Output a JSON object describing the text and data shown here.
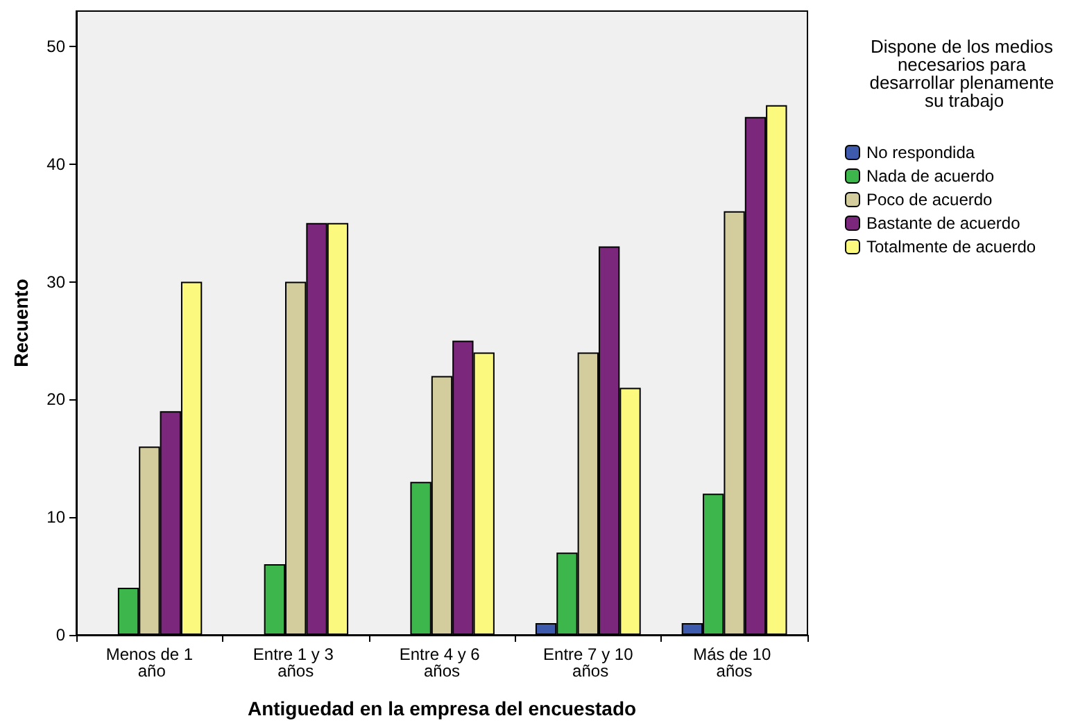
{
  "chart_data": {
    "type": "bar",
    "xlabel": "Antiguedad en la empresa del encuestado",
    "ylabel": "Recuento",
    "legend_title": "Dispone de los medios necesarios para desarrollar plenamente su trabajo",
    "categories": [
      "Menos de 1 año",
      "Entre 1 y 3 años",
      "Entre 4 y 6 años",
      "Entre 7 y 10 años",
      "Más de 10 años"
    ],
    "series": [
      {
        "name": "No respondida",
        "color": "#3e5aad",
        "values": [
          null,
          null,
          null,
          1,
          1
        ]
      },
      {
        "name": "Nada de acuerdo",
        "color": "#3db64b",
        "values": [
          4,
          6,
          13,
          7,
          12
        ]
      },
      {
        "name": "Poco de acuerdo",
        "color": "#d3cc9c",
        "values": [
          16,
          30,
          22,
          24,
          36
        ]
      },
      {
        "name": "Bastante de acuerdo",
        "color": "#7b277c",
        "values": [
          19,
          35,
          25,
          33,
          44
        ]
      },
      {
        "name": "Totalmente de acuerdo",
        "color": "#fbf97e",
        "values": [
          30,
          35,
          24,
          21,
          45
        ]
      }
    ],
    "ylim": [
      0,
      53
    ],
    "yticks": [
      0,
      10,
      20,
      30,
      40,
      50
    ],
    "grid": false,
    "legend": "right"
  }
}
